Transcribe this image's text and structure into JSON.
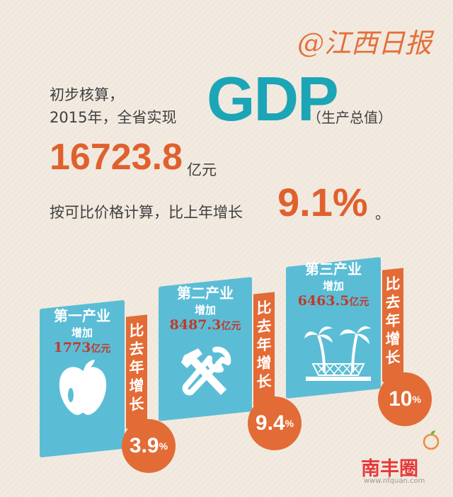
{
  "brand": {
    "logo_text": "@江西日报"
  },
  "headline": {
    "line1": "初步核算，",
    "line2": "2015年，全省实现",
    "gdp": "GDP",
    "gdp_note": "（生产总值）",
    "value": "16723.8",
    "value_unit": "亿元",
    "growth_prefix": "按可比价格计算，比上年增长",
    "growth": "9.1%",
    "growth_suffix": "。"
  },
  "industries": [
    {
      "title": "第一产业",
      "sub": "增加",
      "value": "1773",
      "unit": "亿元",
      "strip": [
        "比",
        "去",
        "年",
        "增",
        "长"
      ],
      "growth": "3.9",
      "pct": "%",
      "icon": "apple-icon"
    },
    {
      "title": "第二产业",
      "sub": "增加",
      "value": "8487.3",
      "unit": "亿元",
      "strip": [
        "比",
        "去",
        "年",
        "增",
        "长"
      ],
      "growth": "9.4",
      "pct": "%",
      "icon": "tools-icon"
    },
    {
      "title": "第三产业",
      "sub": "增加",
      "value": "6463.5",
      "unit": "亿元",
      "strip": [
        "比",
        "去",
        "年",
        "增",
        "长"
      ],
      "growth": "10",
      "pct": "%",
      "icon": "palm-hammock-icon"
    }
  ],
  "watermark": {
    "name": "南丰圈",
    "url": "www.nfquan.com"
  },
  "colors": {
    "accent": "#e36b36",
    "teal": "#1ca5b7",
    "card": "#5bbdd5",
    "value_red": "#c0392b"
  }
}
